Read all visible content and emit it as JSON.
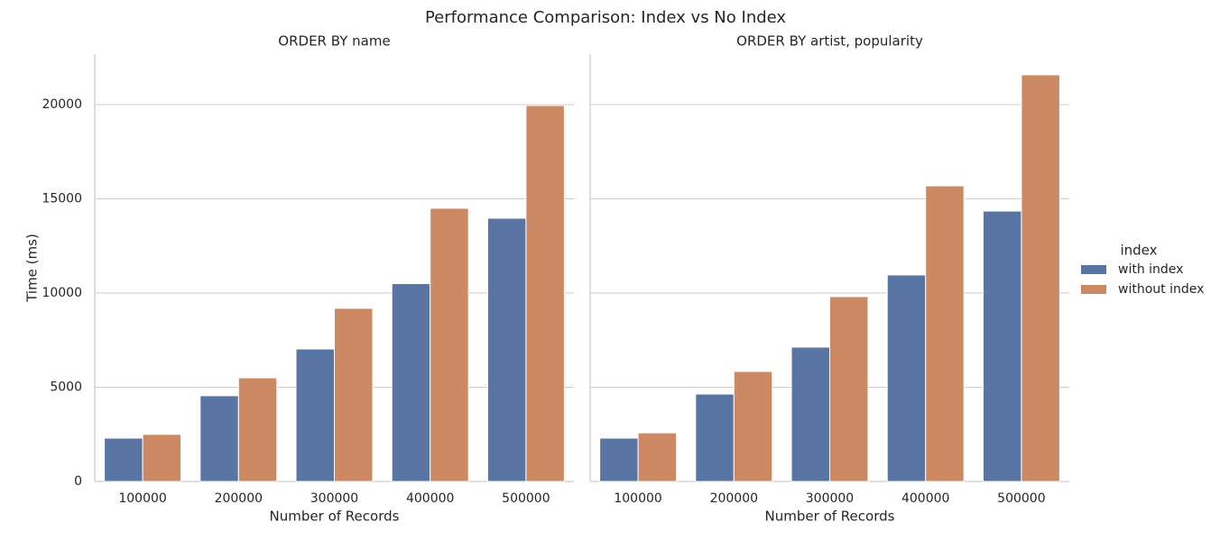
{
  "title": "Performance Comparison: Index vs No Index",
  "legend_title": "index",
  "chart_data": [
    {
      "type": "bar",
      "title": "ORDER BY name",
      "xlabel": "Number of Records",
      "ylabel": "Time (ms)",
      "categories": [
        "100000",
        "200000",
        "300000",
        "400000",
        "500000"
      ],
      "series": [
        {
          "name": "with index",
          "color": "#5975a4",
          "values": [
            2300,
            4550,
            7030,
            10500,
            13970
          ]
        },
        {
          "name": "without index",
          "color": "#cc8963",
          "values": [
            2500,
            5500,
            9190,
            14500,
            19950
          ]
        }
      ],
      "ylim": [
        0,
        22680
      ],
      "yticks": [
        0,
        5000,
        10000,
        15000,
        20000
      ],
      "grid": true
    },
    {
      "type": "bar",
      "title": "ORDER BY artist, popularity",
      "xlabel": "Number of Records",
      "categories": [
        "100000",
        "200000",
        "300000",
        "400000",
        "500000"
      ],
      "series": [
        {
          "name": "with index",
          "color": "#5975a4",
          "values": [
            2300,
            4640,
            7130,
            10960,
            14350
          ]
        },
        {
          "name": "without index",
          "color": "#cc8963",
          "values": [
            2580,
            5840,
            9810,
            15690,
            21580
          ]
        }
      ],
      "ylim": [
        0,
        22680
      ],
      "yticks": [
        0,
        5000,
        10000,
        15000,
        20000
      ],
      "grid": true
    }
  ]
}
